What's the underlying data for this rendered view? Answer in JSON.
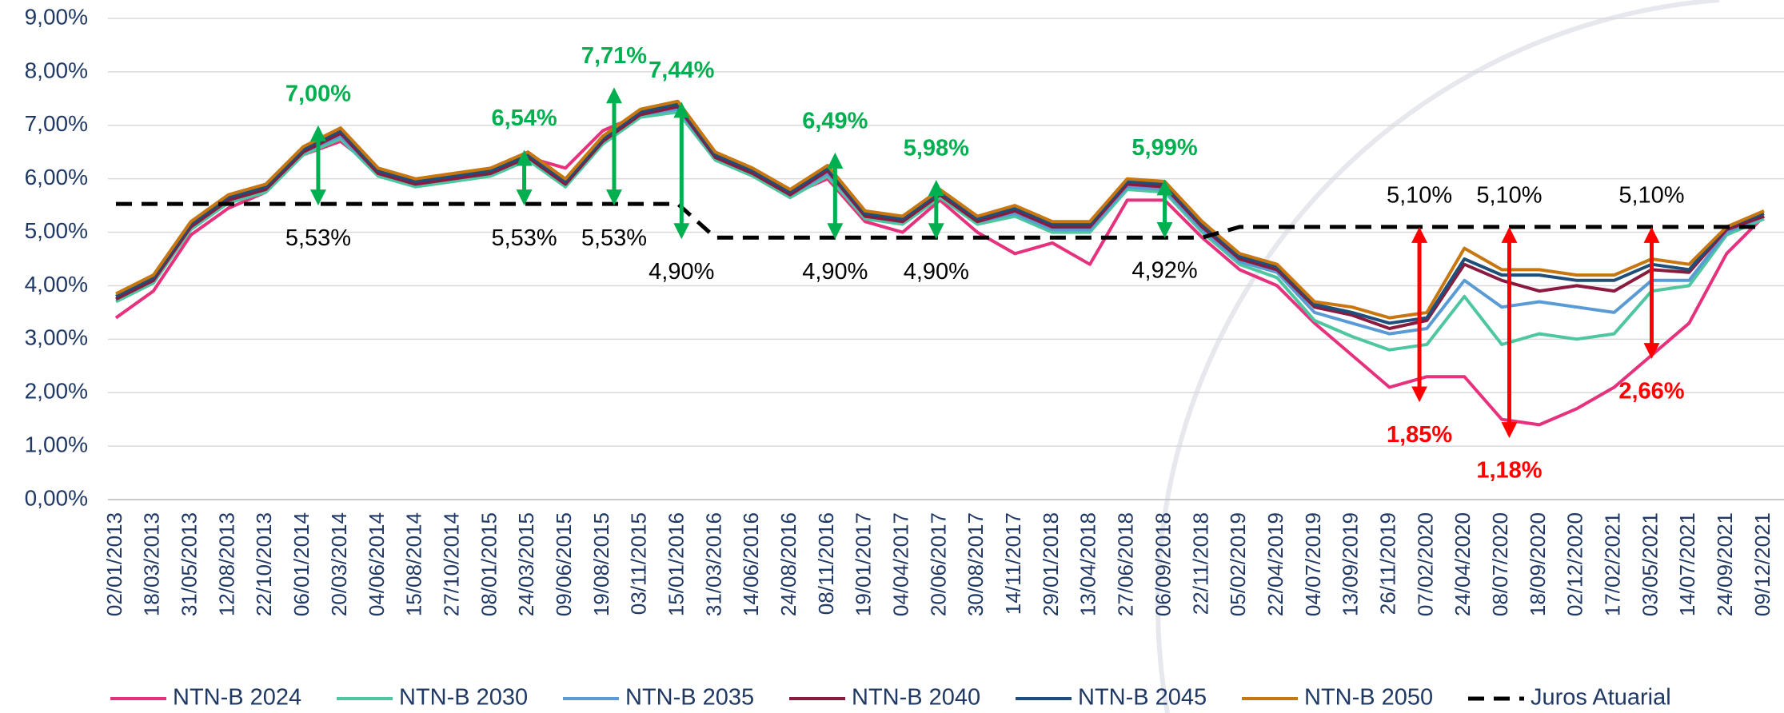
{
  "chart_data": {
    "type": "line",
    "categories": [
      "02/01/2013",
      "18/03/2013",
      "31/05/2013",
      "12/08/2013",
      "22/10/2013",
      "06/01/2014",
      "20/03/2014",
      "04/06/2014",
      "15/08/2014",
      "27/10/2014",
      "08/01/2015",
      "24/03/2015",
      "09/06/2015",
      "19/08/2015",
      "03/11/2015",
      "15/01/2016",
      "31/03/2016",
      "14/06/2016",
      "24/08/2016",
      "08/11/2016",
      "19/01/2017",
      "04/04/2017",
      "20/06/2017",
      "30/08/2017",
      "14/11/2017",
      "29/01/2018",
      "13/04/2018",
      "27/06/2018",
      "06/09/2018",
      "22/11/2018",
      "05/02/2019",
      "22/04/2019",
      "04/07/2019",
      "13/09/2019",
      "26/11/2019",
      "07/02/2020",
      "24/04/2020",
      "08/07/2020",
      "18/09/2020",
      "02/12/2020",
      "17/02/2021",
      "03/05/2021",
      "14/07/2021",
      "24/09/2021",
      "09/12/2021"
    ],
    "series": [
      {
        "name": "NTN-B 2024",
        "color": "#e6317d",
        "values": [
          3.4,
          3.9,
          4.95,
          5.45,
          5.75,
          6.45,
          6.7,
          6.15,
          5.9,
          6.0,
          6.1,
          6.4,
          6.2,
          6.9,
          7.2,
          7.3,
          6.4,
          6.1,
          5.7,
          6.0,
          5.2,
          5.0,
          5.6,
          5.0,
          4.6,
          4.8,
          4.4,
          5.6,
          5.6,
          4.9,
          4.3,
          4.0,
          3.3,
          2.7,
          2.1,
          2.3,
          2.3,
          1.5,
          1.4,
          1.7,
          2.1,
          2.7,
          3.3,
          4.6,
          5.3
        ]
      },
      {
        "name": "NTN-B 2030",
        "color": "#4ec6a0",
        "values": [
          3.7,
          4.05,
          5.05,
          5.55,
          5.75,
          6.45,
          6.75,
          6.05,
          5.85,
          5.95,
          6.05,
          6.35,
          5.85,
          6.65,
          7.15,
          7.25,
          6.35,
          6.05,
          5.65,
          6.05,
          5.25,
          5.15,
          5.65,
          5.15,
          5.3,
          5.0,
          5.0,
          5.8,
          5.75,
          5.0,
          4.4,
          4.15,
          3.35,
          3.05,
          2.8,
          2.9,
          3.8,
          2.9,
          3.1,
          3.0,
          3.1,
          3.9,
          4.0,
          4.95,
          5.25
        ]
      },
      {
        "name": "NTN-B 2035",
        "color": "#5b9bd5",
        "values": [
          3.75,
          4.1,
          5.1,
          5.6,
          5.8,
          6.5,
          6.8,
          6.1,
          5.9,
          6.0,
          6.1,
          6.4,
          5.9,
          6.7,
          7.2,
          7.3,
          6.4,
          6.1,
          5.7,
          6.1,
          5.3,
          5.2,
          5.7,
          5.2,
          5.35,
          5.05,
          5.05,
          5.85,
          5.8,
          5.05,
          4.45,
          4.25,
          3.5,
          3.3,
          3.1,
          3.2,
          4.1,
          3.6,
          3.7,
          3.6,
          3.5,
          4.1,
          4.1,
          5.0,
          5.3
        ]
      },
      {
        "name": "NTN-B 2040",
        "color": "#8b1a3f",
        "values": [
          3.75,
          4.1,
          5.1,
          5.6,
          5.8,
          6.5,
          6.85,
          6.1,
          5.9,
          6.0,
          6.1,
          6.4,
          5.9,
          6.7,
          7.2,
          7.35,
          6.4,
          6.1,
          5.7,
          6.15,
          5.3,
          5.2,
          5.7,
          5.2,
          5.4,
          5.1,
          5.1,
          5.9,
          5.85,
          5.1,
          4.5,
          4.3,
          3.6,
          3.45,
          3.2,
          3.35,
          4.4,
          4.1,
          3.9,
          4.0,
          3.9,
          4.3,
          4.25,
          5.05,
          5.3
        ]
      },
      {
        "name": "NTN-B 2045",
        "color": "#1f4e79",
        "values": [
          3.8,
          4.15,
          5.15,
          5.65,
          5.85,
          6.55,
          6.9,
          6.15,
          5.95,
          6.05,
          6.15,
          6.45,
          5.95,
          6.75,
          7.25,
          7.4,
          6.45,
          6.15,
          5.75,
          6.2,
          5.35,
          5.25,
          5.75,
          5.25,
          5.45,
          5.15,
          5.15,
          5.95,
          5.9,
          5.15,
          4.55,
          4.35,
          3.65,
          3.5,
          3.3,
          3.4,
          4.5,
          4.2,
          4.2,
          4.1,
          4.1,
          4.4,
          4.3,
          5.1,
          5.35
        ]
      },
      {
        "name": "NTN-B 2050",
        "color": "#c8760f",
        "values": [
          3.85,
          4.2,
          5.2,
          5.7,
          5.9,
          6.6,
          6.95,
          6.2,
          6.0,
          6.1,
          6.2,
          6.5,
          6.0,
          6.8,
          7.3,
          7.45,
          6.5,
          6.2,
          5.8,
          6.25,
          5.4,
          5.3,
          5.8,
          5.3,
          5.5,
          5.2,
          5.2,
          6.0,
          5.95,
          5.2,
          4.6,
          4.4,
          3.7,
          3.6,
          3.4,
          3.5,
          4.7,
          4.3,
          4.3,
          4.2,
          4.2,
          4.5,
          4.4,
          5.1,
          5.4
        ]
      },
      {
        "name": "Juros Atuarial",
        "color": "#000000",
        "dashed": true,
        "values": [
          5.53,
          5.53,
          5.53,
          5.53,
          5.53,
          5.53,
          5.53,
          5.53,
          5.53,
          5.53,
          5.53,
          5.53,
          5.53,
          5.53,
          5.53,
          5.53,
          4.9,
          4.9,
          4.9,
          4.9,
          4.9,
          4.9,
          4.9,
          4.9,
          4.9,
          4.9,
          4.9,
          4.9,
          4.9,
          4.9,
          5.1,
          5.1,
          5.1,
          5.1,
          5.1,
          5.1,
          5.1,
          5.1,
          5.1,
          5.1,
          5.1,
          5.1,
          5.1,
          5.1,
          5.1
        ]
      }
    ],
    "ylim": [
      0,
      9
    ],
    "yticks": [
      {
        "value": 0,
        "label": "0,00%"
      },
      {
        "value": 1,
        "label": "1,00%"
      },
      {
        "value": 2,
        "label": "2,00%"
      },
      {
        "value": 3,
        "label": "3,00%"
      },
      {
        "value": 4,
        "label": "4,00%"
      },
      {
        "value": 5,
        "label": "5,00%"
      },
      {
        "value": 6,
        "label": "6,00%"
      },
      {
        "value": 7,
        "label": "7,00%"
      },
      {
        "value": 8,
        "label": "8,00%"
      },
      {
        "value": 9,
        "label": "9,00%"
      }
    ],
    "grid": true,
    "legend": "bottom",
    "annotations": [
      {
        "x": 5.4,
        "high": 7.0,
        "high_label": "7,00%",
        "low": 5.53,
        "low_label": "5,53%",
        "color": "#00b050",
        "high_color": "#00b050",
        "low_color": "#000000"
      },
      {
        "x": 10.9,
        "high": 6.54,
        "high_label": "6,54%",
        "low": 5.53,
        "low_label": "5,53%",
        "color": "#00b050",
        "high_color": "#00b050",
        "low_color": "#000000"
      },
      {
        "x": 13.3,
        "high": 7.71,
        "high_label": "7,71%",
        "low": 5.53,
        "low_label": "5,53%",
        "color": "#00b050",
        "high_color": "#00b050",
        "low_color": "#000000"
      },
      {
        "x": 15.1,
        "high": 7.44,
        "high_label": "7,44%",
        "low": 4.9,
        "low_label": "4,90%",
        "color": "#00b050",
        "high_color": "#00b050",
        "low_color": "#000000"
      },
      {
        "x": 19.2,
        "high": 6.49,
        "high_label": "6,49%",
        "low": 4.9,
        "low_label": "4,90%",
        "color": "#00b050",
        "high_color": "#00b050",
        "low_color": "#000000"
      },
      {
        "x": 21.9,
        "high": 5.98,
        "high_label": "5,98%",
        "low": 4.9,
        "low_label": "4,90%",
        "color": "#00b050",
        "high_color": "#00b050",
        "low_color": "#000000"
      },
      {
        "x": 28.0,
        "high": 5.99,
        "high_label": "5,99%",
        "low": 4.92,
        "low_label": "4,92%",
        "color": "#00b050",
        "high_color": "#00b050",
        "low_color": "#000000"
      },
      {
        "x": 34.8,
        "high": 5.1,
        "high_label": "5,10%",
        "low": 1.85,
        "low_label": "1,85%",
        "color": "#ff0000",
        "high_color": "#000000",
        "low_color": "#ff0000"
      },
      {
        "x": 37.2,
        "high": 5.1,
        "high_label": "5,10%",
        "low": 1.18,
        "low_label": "1,18%",
        "color": "#ff0000",
        "high_color": "#000000",
        "low_color": "#ff0000"
      },
      {
        "x": 41.0,
        "high": 5.1,
        "high_label": "5,10%",
        "low": 2.66,
        "low_label": "2,66%",
        "color": "#ff0000",
        "high_color": "#000000",
        "low_color": "#ff0000"
      }
    ]
  }
}
